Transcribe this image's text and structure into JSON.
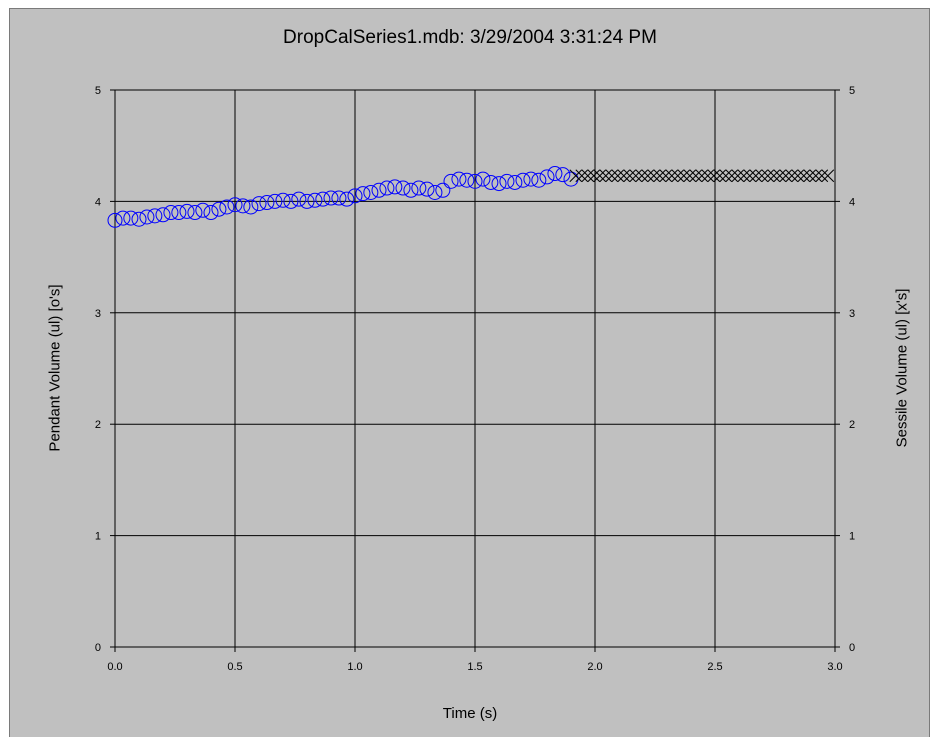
{
  "chart_data": {
    "type": "scatter",
    "title": "DropCalSeries1.mdb: 3/29/2004 3:31:24 PM",
    "xlabel": "Time (s)",
    "ylabel": "Pendant Volume (ul) [o's]",
    "y2label": "Sessile Volume (ul) [x's]",
    "xlim": [
      0,
      3
    ],
    "ylim": [
      0,
      5
    ],
    "y2lim": [
      0,
      5
    ],
    "grid": true,
    "xticks": [
      "0.0",
      "0.5",
      "1.0",
      "1.5",
      "2.0",
      "2.5",
      "3.0"
    ],
    "yticks": [
      "0",
      "1",
      "2",
      "3",
      "4",
      "5"
    ],
    "y2ticks": [
      "0",
      "1",
      "2",
      "3",
      "4",
      "5"
    ],
    "series": [
      {
        "marker": "circle",
        "color": "#0000ff",
        "axis": "left",
        "x": [
          0.0,
          0.033,
          0.066,
          0.1,
          0.133,
          0.166,
          0.2,
          0.233,
          0.266,
          0.3,
          0.333,
          0.366,
          0.4,
          0.433,
          0.466,
          0.5,
          0.533,
          0.566,
          0.6,
          0.633,
          0.666,
          0.7,
          0.733,
          0.766,
          0.8,
          0.833,
          0.866,
          0.9,
          0.933,
          0.966,
          1.0,
          1.033,
          1.066,
          1.1,
          1.133,
          1.166,
          1.2,
          1.233,
          1.266,
          1.3,
          1.333,
          1.366,
          1.4,
          1.433,
          1.466,
          1.5,
          1.533,
          1.566,
          1.6,
          1.633,
          1.666,
          1.7,
          1.733,
          1.766,
          1.8,
          1.833,
          1.866,
          1.9
        ],
        "y": [
          3.83,
          3.85,
          3.85,
          3.84,
          3.86,
          3.87,
          3.88,
          3.9,
          3.9,
          3.91,
          3.9,
          3.92,
          3.9,
          3.93,
          3.95,
          3.97,
          3.96,
          3.95,
          3.98,
          3.99,
          4.0,
          4.01,
          4.0,
          4.02,
          4.0,
          4.01,
          4.02,
          4.03,
          4.03,
          4.02,
          4.05,
          4.07,
          4.08,
          4.1,
          4.12,
          4.13,
          4.12,
          4.1,
          4.12,
          4.11,
          4.08,
          4.1,
          4.18,
          4.2,
          4.19,
          4.18,
          4.2,
          4.17,
          4.16,
          4.18,
          4.17,
          4.19,
          4.2,
          4.19,
          4.22,
          4.25,
          4.24,
          4.2
        ]
      },
      {
        "marker": "x",
        "color": "#000000",
        "axis": "right",
        "x": [
          1.92,
          1.945,
          1.97,
          1.995,
          2.02,
          2.045,
          2.07,
          2.095,
          2.12,
          2.145,
          2.17,
          2.195,
          2.22,
          2.245,
          2.27,
          2.295,
          2.32,
          2.345,
          2.37,
          2.395,
          2.42,
          2.445,
          2.47,
          2.495,
          2.52,
          2.545,
          2.57,
          2.595,
          2.62,
          2.645,
          2.67,
          2.695,
          2.72,
          2.745,
          2.77,
          2.795,
          2.82,
          2.845,
          2.87,
          2.895,
          2.92,
          2.945,
          2.97
        ],
        "y": [
          4.23,
          4.23,
          4.23,
          4.23,
          4.23,
          4.23,
          4.23,
          4.23,
          4.23,
          4.23,
          4.23,
          4.23,
          4.23,
          4.23,
          4.23,
          4.23,
          4.23,
          4.23,
          4.23,
          4.23,
          4.23,
          4.23,
          4.23,
          4.23,
          4.23,
          4.23,
          4.23,
          4.23,
          4.23,
          4.23,
          4.23,
          4.23,
          4.23,
          4.23,
          4.23,
          4.23,
          4.23,
          4.23,
          4.23,
          4.23,
          4.23,
          4.23,
          4.23
        ]
      }
    ]
  }
}
